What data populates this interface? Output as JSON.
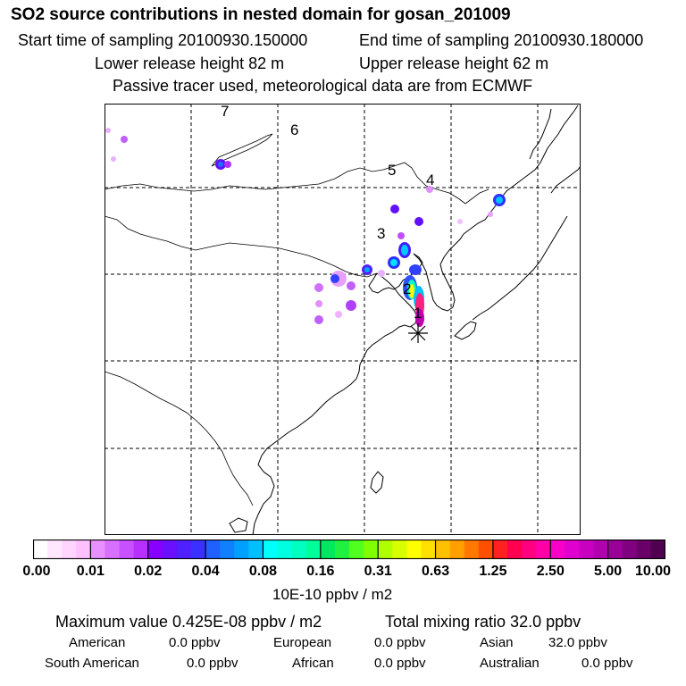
{
  "header": {
    "title": "SO2 source contributions in nested domain for gosan_201009",
    "start": "Start time of sampling 20100930.150000",
    "end": "End time of sampling 20100930.180000",
    "lower": "Lower release height   82 m",
    "upper": "Upper release height   62 m",
    "note": "Passive tracer used, meteorological data are from ECMWF"
  },
  "map": {
    "labels": [
      "7",
      "6",
      "5",
      "4",
      "3",
      "2",
      "1"
    ],
    "receptor": "gosan",
    "colors": {
      "grid": "#000000",
      "coast": "#000000"
    }
  },
  "colorbar": {
    "ticks": [
      "0.00",
      "0.01",
      "0.02",
      "0.04",
      "0.08",
      "0.16",
      "0.31",
      "0.63",
      "1.25",
      "2.50",
      "5.00",
      "10.00"
    ],
    "units": "10E-10 ppbv / m2",
    "colors": [
      "#ffffff",
      "#ffe8ff",
      "#ffd4ff",
      "#ffc0ff",
      "#e890ff",
      "#d870ff",
      "#c850ff",
      "#b830ff",
      "#8800ff",
      "#6a10ff",
      "#5020ff",
      "#3a30ff",
      "#2060ff",
      "#1080ff",
      "#00a0ff",
      "#00c0ff",
      "#00ffff",
      "#00ffe0",
      "#00ffc0",
      "#00ff9a",
      "#00e860",
      "#20f040",
      "#50ff20",
      "#80ff00",
      "#b0ff00",
      "#d8ff00",
      "#ffff00",
      "#ffe000",
      "#ffc000",
      "#ffa000",
      "#ff7800",
      "#ff5000",
      "#ff2020",
      "#ff0050",
      "#ff0080",
      "#ff00a8",
      "#f800c8",
      "#e000d0",
      "#c800c0",
      "#b000b0",
      "#980098",
      "#800080",
      "#680068",
      "#500050"
    ]
  },
  "summary": {
    "max": "Maximum value  0.425E-08 ppbv / m2",
    "total": "Total mixing ratio       32.0 ppbv",
    "regions": [
      {
        "name": "American",
        "value": "0.0 ppbv"
      },
      {
        "name": "European",
        "value": "0.0 ppbv"
      },
      {
        "name": "Asian",
        "value": "32.0 ppbv"
      },
      {
        "name": "South American",
        "value": "0.0 ppbv"
      },
      {
        "name": "African",
        "value": "0.0 ppbv"
      },
      {
        "name": "Australian",
        "value": "0.0 ppbv"
      }
    ]
  }
}
